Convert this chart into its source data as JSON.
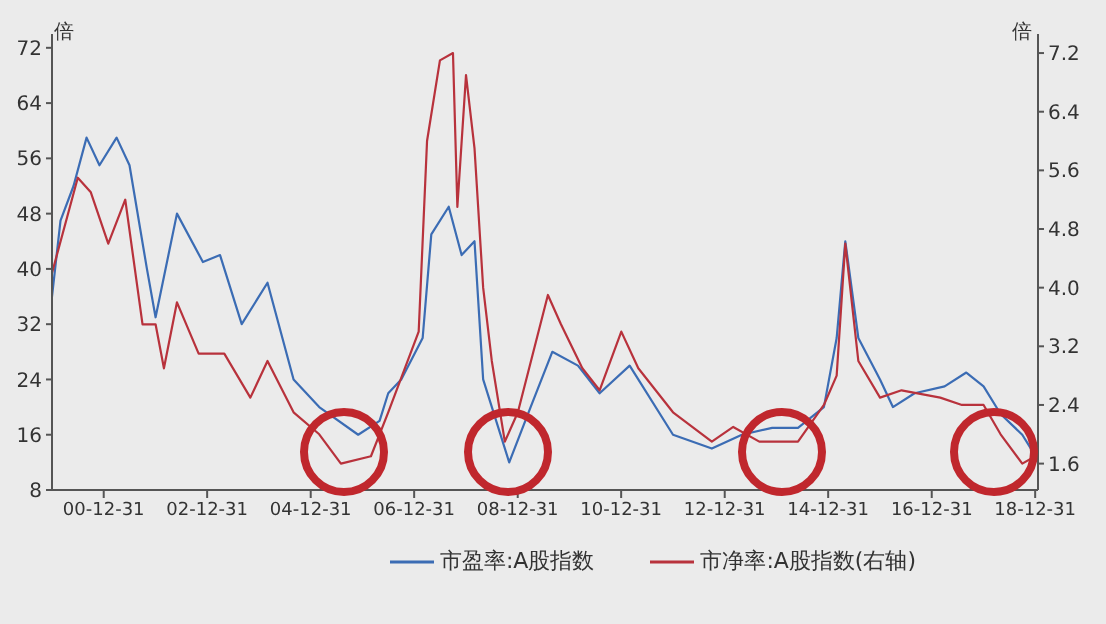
{
  "chart_data": {
    "type": "line",
    "ylabel": "倍",
    "y2label": "倍",
    "xlim": [
      "2000-01-01",
      "2019-01-20"
    ],
    "xticks": [
      {
        "value": "2000-12-31",
        "label": "00-12-31"
      },
      {
        "value": "2002-12-31",
        "label": "02-12-31"
      },
      {
        "value": "2004-12-31",
        "label": "04-12-31"
      },
      {
        "value": "2006-12-31",
        "label": "06-12-31"
      },
      {
        "value": "2008-12-31",
        "label": "08-12-31"
      },
      {
        "value": "2010-12-31",
        "label": "10-12-31"
      },
      {
        "value": "2012-12-31",
        "label": "12-12-31"
      },
      {
        "value": "2014-12-31",
        "label": "14-12-31"
      },
      {
        "value": "2016-12-31",
        "label": "16-12-31"
      },
      {
        "value": "2018-12-31",
        "label": "18-12-31"
      }
    ],
    "ylim": [
      8,
      74
    ],
    "yticks": [
      8,
      16,
      24,
      32,
      40,
      48,
      56,
      64,
      72
    ],
    "y2lim": [
      1.24,
      7.46
    ],
    "y2ticks": [
      1.6,
      2.4,
      3.2,
      {
        "value": 4,
        "label": "4.0"
      },
      4.8,
      5.6,
      6.4,
      7.2
    ],
    "legend": "bottom",
    "series": [
      {
        "name": "市盈率:A股指数",
        "color": "#3b6cb4",
        "x": [
          "2000-01",
          "2000-03",
          "2000-06",
          "2000-09",
          "2000-12",
          "2001-04",
          "2001-07",
          "2001-11",
          "2002-01",
          "2002-06",
          "2002-12",
          "2003-04",
          "2003-09",
          "2004-03",
          "2004-09",
          "2005-03",
          "2005-12",
          "2006-05",
          "2006-07",
          "2006-10",
          "2007-03",
          "2007-05",
          "2007-09",
          "2007-12",
          "2008-03",
          "2008-05",
          "2008-11",
          "2009-04",
          "2009-09",
          "2010-03",
          "2010-08",
          "2011-03",
          "2012-01",
          "2012-10",
          "2013-05",
          "2013-12",
          "2014-06",
          "2014-12",
          "2015-03",
          "2015-05",
          "2015-08",
          "2016-01",
          "2016-04",
          "2016-09",
          "2017-04",
          "2017-09",
          "2018-01",
          "2018-05",
          "2018-10",
          "2018-12",
          "2019-01"
        ],
        "values": [
          36,
          47,
          52,
          59,
          55,
          59,
          55,
          40,
          33,
          48,
          41,
          42,
          32,
          38,
          24,
          20,
          16,
          18,
          22,
          24,
          30,
          45,
          49,
          42,
          44,
          24,
          12,
          20,
          28,
          26,
          22,
          26,
          16,
          14,
          16,
          17,
          17,
          20,
          30,
          44,
          30,
          24,
          20,
          22,
          23,
          25,
          23,
          19,
          16,
          14,
          15
        ]
      },
      {
        "name": "市净率:A股指数(右轴)",
        "color": "#b8323c",
        "axis": "y2",
        "x": [
          "2000-01",
          "2000-07",
          "2000-10",
          "2001-02",
          "2001-06",
          "2001-10",
          "2002-01",
          "2002-03",
          "2002-06",
          "2002-11",
          "2003-05",
          "2003-11",
          "2004-03",
          "2004-09",
          "2005-03",
          "2005-08",
          "2006-03",
          "2006-07",
          "2007-02",
          "2007-04",
          "2007-07",
          "2007-10",
          "2007-11",
          "2008-01",
          "2008-03",
          "2008-05",
          "2008-07",
          "2008-10",
          "2009-01",
          "2009-08",
          "2009-11",
          "2010-04",
          "2010-08",
          "2011-01",
          "2011-05",
          "2012-01",
          "2012-10",
          "2013-03",
          "2013-09",
          "2014-06",
          "2014-12",
          "2015-03",
          "2015-05",
          "2015-08",
          "2016-01",
          "2016-06",
          "2017-03",
          "2017-08",
          "2018-01",
          "2018-05",
          "2018-10",
          "2019-01"
        ],
        "values": [
          4.2,
          5.5,
          5.3,
          4.6,
          5.2,
          3.5,
          3.5,
          2.9,
          3.8,
          3.1,
          3.1,
          2.5,
          3.0,
          2.3,
          2.0,
          1.6,
          1.7,
          2.3,
          3.4,
          6.0,
          7.1,
          7.2,
          5.1,
          6.9,
          5.9,
          4.0,
          3.0,
          1.9,
          2.3,
          3.9,
          3.5,
          2.9,
          2.6,
          3.4,
          2.9,
          2.3,
          1.9,
          2.1,
          1.9,
          1.9,
          2.4,
          2.8,
          4.6,
          3.0,
          2.5,
          2.6,
          2.5,
          2.4,
          2.4,
          2.0,
          1.6,
          1.7
        ]
      }
    ]
  }
}
